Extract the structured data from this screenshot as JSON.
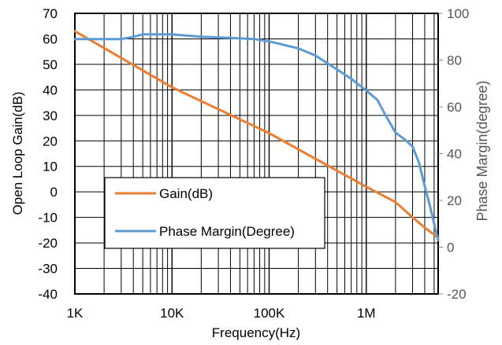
{
  "chart_data": {
    "type": "line",
    "xlabel": "Frequency(Hz)",
    "ylabel_left": "Open Loop Gain(dB)",
    "ylabel_right": "Phase Margin(degree)",
    "x_scale": "log",
    "xlim": [
      1000,
      5500000
    ],
    "x_ticks": [
      1000,
      10000,
      100000,
      1000000
    ],
    "x_tick_labels": [
      "1K",
      "10K",
      "100K",
      "1M"
    ],
    "ylim_left": [
      -40,
      70
    ],
    "y_ticks_left": [
      -40,
      -30,
      -20,
      -10,
      0,
      10,
      20,
      30,
      40,
      50,
      60,
      70
    ],
    "ylim_right": [
      -20,
      100
    ],
    "y_ticks_right": [
      -20,
      0,
      20,
      40,
      60,
      80,
      100
    ],
    "grid": true,
    "legend_position": "bottom-left",
    "series": [
      {
        "name": "Gain(dB)",
        "axis": "left",
        "color": "#ed7d31",
        "x": [
          1000,
          10000,
          100000,
          1000000,
          2000000,
          3000000,
          4000000,
          5500000
        ],
        "y": [
          63,
          41,
          23,
          2,
          -4,
          -10,
          -14,
          -18
        ]
      },
      {
        "name": "Phase Margin(Degree)",
        "axis": "right",
        "color": "#5b9bd5",
        "x": [
          1000,
          2000,
          3000,
          4000,
          5000,
          7000,
          10000,
          20000,
          40000,
          70000,
          100000,
          200000,
          300000,
          500000,
          700000,
          1000000,
          1300000,
          1600000,
          2000000,
          2500000,
          3000000,
          3500000,
          4000000,
          4500000,
          5000000,
          5500000
        ],
        "y": [
          89,
          89,
          89,
          90,
          91,
          91,
          91,
          90,
          89.5,
          89,
          88,
          85,
          82,
          76,
          72,
          67,
          63,
          56,
          49,
          46,
          43,
          36,
          26,
          18,
          10,
          3
        ]
      }
    ]
  }
}
